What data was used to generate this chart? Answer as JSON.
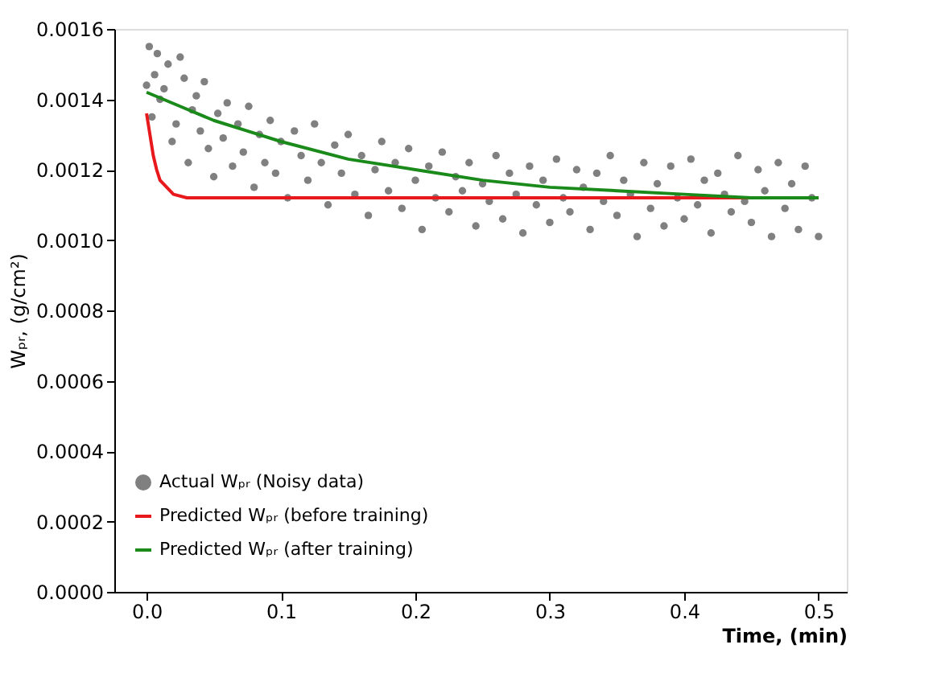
{
  "chart_data": {
    "type": "line",
    "xlabel": "Time, (min)",
    "ylabel": "Wₚᵣ, (g/cm²)",
    "xlim": [
      -0.024,
      0.521
    ],
    "ylim": [
      0,
      0.0016
    ],
    "xticks": [
      {
        "value": 0,
        "label": "0.0"
      },
      {
        "value": 0.1,
        "label": "0.1"
      },
      {
        "value": 0.2,
        "label": "0.2"
      },
      {
        "value": 0.3,
        "label": "0.3"
      },
      {
        "value": 0.4,
        "label": "0.4"
      },
      {
        "value": 0.5,
        "label": "0.5"
      }
    ],
    "yticks": [
      {
        "value": 0,
        "label": "0.0000"
      },
      {
        "value": 0.0002,
        "label": "0.0002"
      },
      {
        "value": 0.0004,
        "label": "0.0004"
      },
      {
        "value": 0.0006,
        "label": "0.0006"
      },
      {
        "value": 0.0008,
        "label": "0.0008"
      },
      {
        "value": 0.001,
        "label": "0.0010"
      },
      {
        "value": 0.0012,
        "label": "0.0012"
      },
      {
        "value": 0.0014,
        "label": "0.0014"
      },
      {
        "value": 0.0016,
        "label": "0.0016"
      }
    ],
    "grid": false,
    "legend": "bottom left",
    "series": [
      {
        "name": "Actual Wₚᵣ (Noisy data)",
        "type": "scatter",
        "marker": "circle",
        "color": "#808080",
        "x": [
          0.0,
          0.002,
          0.004,
          0.006,
          0.008,
          0.01,
          0.013,
          0.016,
          0.019,
          0.022,
          0.025,
          0.028,
          0.031,
          0.034,
          0.037,
          0.04,
          0.043,
          0.046,
          0.05,
          0.053,
          0.057,
          0.06,
          0.064,
          0.068,
          0.072,
          0.076,
          0.08,
          0.084,
          0.088,
          0.092,
          0.096,
          0.1,
          0.105,
          0.11,
          0.115,
          0.12,
          0.125,
          0.13,
          0.135,
          0.14,
          0.145,
          0.15,
          0.155,
          0.16,
          0.165,
          0.17,
          0.175,
          0.18,
          0.185,
          0.19,
          0.195,
          0.2,
          0.205,
          0.21,
          0.215,
          0.22,
          0.225,
          0.23,
          0.235,
          0.24,
          0.245,
          0.25,
          0.255,
          0.26,
          0.265,
          0.27,
          0.275,
          0.28,
          0.285,
          0.29,
          0.295,
          0.3,
          0.305,
          0.31,
          0.315,
          0.32,
          0.325,
          0.33,
          0.335,
          0.34,
          0.345,
          0.35,
          0.355,
          0.36,
          0.365,
          0.37,
          0.375,
          0.38,
          0.385,
          0.39,
          0.395,
          0.4,
          0.405,
          0.41,
          0.415,
          0.42,
          0.425,
          0.43,
          0.435,
          0.44,
          0.445,
          0.45,
          0.455,
          0.46,
          0.465,
          0.47,
          0.475,
          0.48,
          0.485,
          0.49,
          0.495,
          0.5
        ],
        "values": [
          0.00144,
          0.00155,
          0.00135,
          0.00147,
          0.00153,
          0.0014,
          0.00143,
          0.0015,
          0.00128,
          0.00133,
          0.00152,
          0.00146,
          0.00122,
          0.00137,
          0.00141,
          0.00131,
          0.00145,
          0.00126,
          0.00118,
          0.00136,
          0.00129,
          0.00139,
          0.00121,
          0.00133,
          0.00125,
          0.00138,
          0.00115,
          0.0013,
          0.00122,
          0.00134,
          0.00119,
          0.00128,
          0.00112,
          0.00131,
          0.00124,
          0.00117,
          0.00133,
          0.00122,
          0.0011,
          0.00127,
          0.00119,
          0.0013,
          0.00113,
          0.00124,
          0.00107,
          0.0012,
          0.00128,
          0.00114,
          0.00122,
          0.00109,
          0.00126,
          0.00117,
          0.00103,
          0.00121,
          0.00112,
          0.00125,
          0.00108,
          0.00118,
          0.00114,
          0.00122,
          0.00104,
          0.00116,
          0.00111,
          0.00124,
          0.00106,
          0.00119,
          0.00113,
          0.00102,
          0.00121,
          0.0011,
          0.00117,
          0.00105,
          0.00123,
          0.00112,
          0.00108,
          0.0012,
          0.00115,
          0.00103,
          0.00119,
          0.00111,
          0.00124,
          0.00107,
          0.00117,
          0.00113,
          0.00101,
          0.00122,
          0.00109,
          0.00116,
          0.00104,
          0.00121,
          0.00112,
          0.00106,
          0.00123,
          0.0011,
          0.00117,
          0.00102,
          0.00119,
          0.00113,
          0.00108,
          0.00124,
          0.00111,
          0.00105,
          0.0012,
          0.00114,
          0.00101,
          0.00122,
          0.00109,
          0.00116,
          0.00103,
          0.00121,
          0.00112,
          0.00101
        ]
      },
      {
        "name": "Predicted Wₚᵣ (before training)",
        "color": "#e8191d",
        "line_style": "solid",
        "x": [
          0,
          0.0025,
          0.005,
          0.0075,
          0.01,
          0.015,
          0.02,
          0.03,
          0.05,
          0.1,
          0.2,
          0.3,
          0.4,
          0.5
        ],
        "values": [
          0.00136,
          0.0013,
          0.00124,
          0.0012,
          0.00117,
          0.00115,
          0.00113,
          0.00112,
          0.00112,
          0.00112,
          0.00112,
          0.00112,
          0.00112,
          0.00112
        ]
      },
      {
        "name": "Predicted Wₚᵣ (after training)",
        "color": "#1a8a1a",
        "line_style": "solid",
        "x": [
          0,
          0.025,
          0.05,
          0.075,
          0.1,
          0.15,
          0.2,
          0.25,
          0.3,
          0.35,
          0.4,
          0.45,
          0.5
        ],
        "values": [
          0.00142,
          0.00138,
          0.00134,
          0.00131,
          0.00128,
          0.00123,
          0.0012,
          0.00117,
          0.00115,
          0.00114,
          0.00113,
          0.00112,
          0.00112
        ]
      }
    ]
  }
}
